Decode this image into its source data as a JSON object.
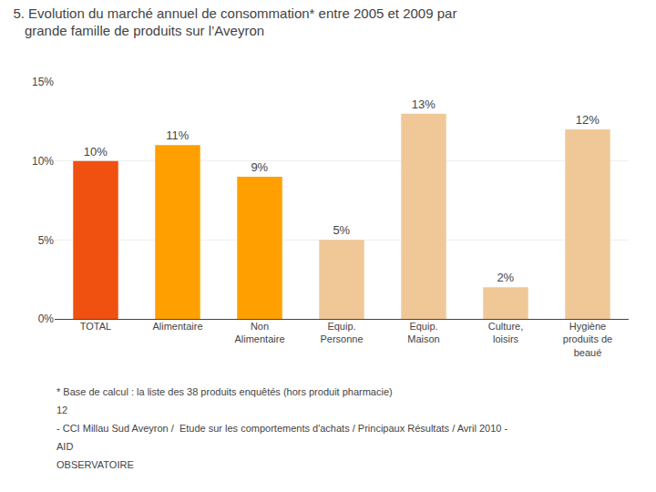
{
  "chart_data": {
    "type": "bar",
    "title": "5. Evolution du marché annuel de consommation* entre 2005 et 2009 par\n   grande famille de produits sur l’Aveyron",
    "categories": [
      "TOTAL",
      "Alimentaire",
      "Non\nAlimentaire",
      "Equip.\nPersonne",
      "Equip.\nMaison",
      "Culture,\nloisirs",
      "Hygiène\nproduits de\nbeaué"
    ],
    "values": [
      10,
      11,
      9,
      5,
      13,
      2,
      12
    ],
    "value_labels": [
      "10%",
      "11%",
      "9%",
      "5%",
      "13%",
      "2%",
      "12%"
    ],
    "data_labels": true,
    "colors": [
      "#F05010",
      "#FFA000",
      "#FFA000",
      "#F0C898",
      "#F0C898",
      "#F0C898",
      "#F0C898"
    ],
    "ylim": [
      0,
      15
    ],
    "yticks": [
      {
        "value": 0,
        "label": "0%"
      },
      {
        "value": 5,
        "label": "5%"
      },
      {
        "value": 10,
        "label": "10%"
      },
      {
        "value": 15,
        "label": "15%"
      }
    ],
    "grid": true,
    "annotations": [
      "* Base de calcul : la liste des 38 produits enquêtés (hors produit pharmacie)",
      "12",
      "- CCI Millau Sud Aveyron /  Etude sur les comportements d'achats / Principaux Résultats / Avril 2010 -",
      "AID",
      "OBSERVATOIRE"
    ]
  }
}
